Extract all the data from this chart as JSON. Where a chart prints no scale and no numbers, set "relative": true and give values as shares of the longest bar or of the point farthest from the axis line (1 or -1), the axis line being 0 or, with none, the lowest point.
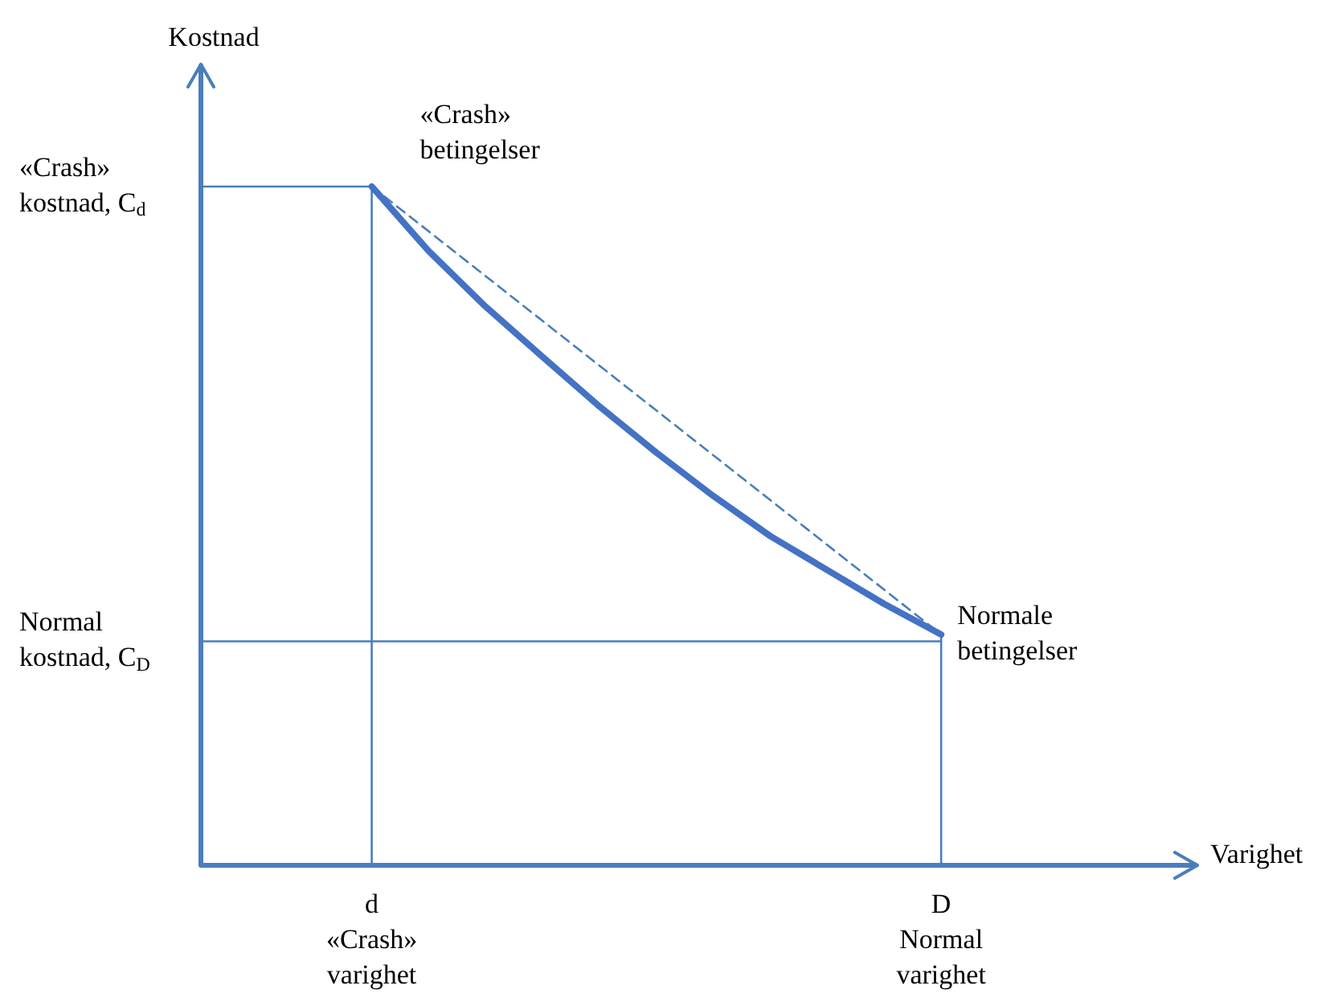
{
  "chart_data": {
    "type": "line",
    "relative": true,
    "xlabel": "Varighet",
    "ylabel": "Kostnad",
    "categories": [
      null,
      null,
      null,
      "d\n«Crash»\nvarighet",
      null,
      null,
      null,
      null,
      null,
      null,
      null,
      null,
      null,
      "D\nNormal\nvarighet",
      null,
      null
    ],
    "series": [
      {
        "color": "#4472c4",
        "values": [
          null,
          null,
          null,
          1,
          0.905,
          0.823,
          0.749,
          0.676,
          0.608,
          0.544,
          0.485,
          0.435,
          0.385,
          0.34,
          null,
          null
        ]
      },
      {
        "color": "#4a7ebb",
        "line_style": "dashed",
        "values": [
          null,
          null,
          null,
          1,
          null,
          null,
          null,
          null,
          null,
          null,
          null,
          null,
          null,
          0.34,
          null,
          null
        ]
      }
    ],
    "ref_lines": [
      {
        "axis": "y",
        "value": 1,
        "label": "«Crash»\nkostnad, C$_{d}$",
        "color": "#4a7ebb"
      },
      {
        "axis": "y",
        "value": 0.33,
        "label": "Normal\nkostnad, C$_{D}$",
        "color": "#4a7ebb"
      },
      {
        "axis": "x",
        "value": "d\n«Crash»\nvarighet",
        "color": "#4a7ebb"
      },
      {
        "axis": "x",
        "value": "D\nNormal\nvarighet",
        "color": "#4a7ebb"
      }
    ],
    "annotations": [
      {
        "text": "«Crash»\nbetingelser",
        "x": "d\n«Crash»\nvarighet",
        "y": 1
      },
      {
        "text": "Normale\nbetingelser",
        "x": "D\nNormal\nvarighet",
        "y": 0.34
      }
    ],
    "legend": false,
    "marker": "none",
    "line_style": "solid"
  }
}
